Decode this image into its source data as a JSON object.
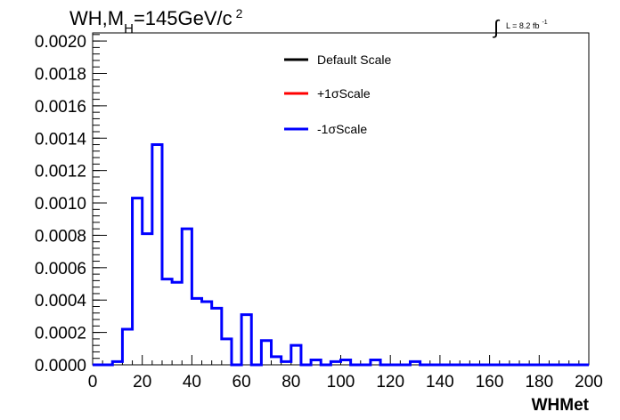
{
  "chart_data": {
    "type": "step-histogram",
    "title": "WH,M",
    "title_subscript": "H",
    "title_rest": "=145GeV/c",
    "title_superscript": "2",
    "lumi_label": "L = 8.2 fb",
    "lumi_superscript": "-1",
    "xlabel": "WHMet",
    "ylabel": "",
    "xlim": [
      0,
      200
    ],
    "ylim": [
      0,
      0.00205
    ],
    "x_ticks": [
      "0",
      "20",
      "40",
      "60",
      "80",
      "100",
      "120",
      "140",
      "160",
      "180",
      "200"
    ],
    "y_ticks": [
      "0.0000",
      "0.0002",
      "0.0004",
      "0.0006",
      "0.0008",
      "0.0010",
      "0.0012",
      "0.0014",
      "0.0016",
      "0.0018",
      "0.0020"
    ],
    "bin_width": 4,
    "bin_edges_start": 0,
    "legend": [
      {
        "name": "Default Scale",
        "color": "#000000"
      },
      {
        "name": "+1σScale",
        "color": "#ff0000"
      },
      {
        "name": "-1σScale",
        "color": "#0000ff"
      }
    ],
    "legend_position": "top-center",
    "series": [
      {
        "name": "-1σScale",
        "color": "#0000ff",
        "values": [
          0,
          0,
          2e-05,
          0.00022,
          0.00103,
          0.00081,
          0.00136,
          0.00053,
          0.00051,
          0.00084,
          0.00041,
          0.00039,
          0.00035,
          0.00016,
          0,
          0.00031,
          0,
          0.00015,
          5e-05,
          2e-05,
          0.00012,
          0,
          3e-05,
          0,
          2e-05,
          3e-05,
          0,
          0,
          3e-05,
          0,
          0,
          0,
          2e-05,
          0,
          0,
          0,
          0,
          0,
          0,
          0,
          0,
          0,
          0,
          0,
          0,
          0,
          0,
          0,
          0,
          0
        ]
      }
    ]
  }
}
